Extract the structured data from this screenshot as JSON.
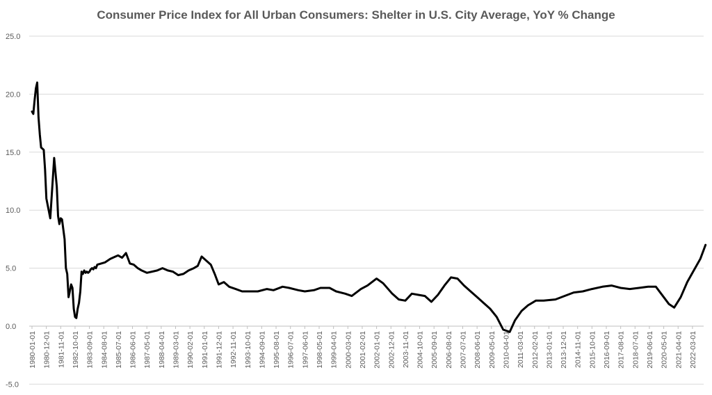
{
  "chart_data": {
    "type": "line",
    "title": "Consumer Price Index for All Urban Consumers: Shelter in U.S. City Average, YoY % Change",
    "xlabel": "",
    "ylabel": "",
    "ylim": [
      -5,
      25
    ],
    "yticks": [
      "25.0",
      "20.0",
      "15.0",
      "10.0",
      "5.0",
      "0.0",
      "-5.0"
    ],
    "ytick_values": [
      25,
      20,
      15,
      10,
      5,
      0,
      -5
    ],
    "xtick_labels": [
      "1980-01-01",
      "1980-12-01",
      "1981-11-01",
      "1982-10-01",
      "1983-09-01",
      "1984-08-01",
      "1985-07-01",
      "1986-06-01",
      "1987-05-01",
      "1988-04-01",
      "1989-03-01",
      "1990-02-01",
      "1991-01-01",
      "1991-12-01",
      "1992-11-01",
      "1993-10-01",
      "1994-09-01",
      "1995-08-01",
      "1996-07-01",
      "1997-06-01",
      "1998-05-01",
      "1999-04-01",
      "2000-03-01",
      "2001-02-01",
      "2002-01-01",
      "2002-12-01",
      "2003-11-01",
      "2004-10-01",
      "2005-09-01",
      "2006-08-01",
      "2007-07-01",
      "2008-06-01",
      "2009-05-01",
      "2010-04-01",
      "2011-03-01",
      "2012-02-01",
      "2013-01-01",
      "2013-12-01",
      "2014-11-01",
      "2015-10-01",
      "2016-09-01",
      "2017-08-01",
      "2018-07-01",
      "2019-06-01",
      "2020-05-01",
      "2021-04-01",
      "2022-03-01"
    ],
    "grid": true,
    "legend": "none",
    "line_color": "#000000",
    "grid_color": "#d9d9d9",
    "series": [
      {
        "x": [
          "1980-01-01",
          "1980-02-01",
          "1980-03-01",
          "1980-04-01",
          "1980-05-01",
          "1980-06-01",
          "1980-07-01",
          "1980-08-01",
          "1980-09-01",
          "1980-10-01",
          "1980-11-01",
          "1980-12-01",
          "1981-03-01",
          "1981-06-01",
          "1981-08-01",
          "1981-09-01",
          "1981-10-01",
          "1981-11-01",
          "1981-12-01",
          "1982-02-01",
          "1982-03-01",
          "1982-04-01",
          "1982-05-01",
          "1982-06-01",
          "1982-07-01",
          "1982-08-01",
          "1982-09-01",
          "1982-10-01",
          "1982-11-01",
          "1982-12-01",
          "1983-01-01",
          "1983-02-01",
          "1983-03-01",
          "1983-04-01",
          "1983-05-01",
          "1983-06-01",
          "1983-07-01",
          "1983-08-01",
          "1983-09-01",
          "1983-10-01",
          "1983-11-01",
          "1983-12-01",
          "1984-01-01",
          "1984-02-01",
          "1984-03-01",
          "1984-06-01",
          "1984-09-01",
          "1985-01-01",
          "1985-05-01",
          "1985-07-01",
          "1985-10-01",
          "1986-01-01",
          "1986-04-01",
          "1986-07-01",
          "1986-10-01",
          "1987-01-01",
          "1987-05-01",
          "1987-09-01",
          "1988-01-01",
          "1988-05-01",
          "1988-09-01",
          "1989-01-01",
          "1989-05-01",
          "1989-09-01",
          "1990-01-01",
          "1990-05-01",
          "1990-08-01",
          "1990-11-01",
          "1991-03-01",
          "1991-06-01",
          "1991-09-01",
          "1991-12-01",
          "1992-04-01",
          "1992-08-01",
          "1993-01-01",
          "1993-06-01",
          "1994-01-01",
          "1994-06-01",
          "1995-01-01",
          "1995-06-01",
          "1996-01-01",
          "1996-06-01",
          "1997-01-01",
          "1997-06-01",
          "1998-01-01",
          "1998-06-01",
          "1999-01-01",
          "1999-06-01",
          "2000-01-01",
          "2000-06-01",
          "2001-01-01",
          "2001-06-01",
          "2002-01-01",
          "2002-06-01",
          "2003-01-01",
          "2003-06-01",
          "2003-11-01",
          "2004-04-01",
          "2004-09-01",
          "2005-02-01",
          "2005-07-01",
          "2005-12-01",
          "2006-05-01",
          "2006-10-01",
          "2007-03-01",
          "2007-08-01",
          "2008-01-01",
          "2008-06-01",
          "2008-11-01",
          "2009-04-01",
          "2009-09-01",
          "2010-02-01",
          "2010-07-01",
          "2010-11-01",
          "2011-04-01",
          "2011-09-01",
          "2012-03-01",
          "2012-09-01",
          "2013-06-01",
          "2014-01-01",
          "2014-08-01",
          "2015-03-01",
          "2015-10-01",
          "2016-06-01",
          "2017-01-01",
          "2017-08-01",
          "2018-03-01",
          "2018-10-01",
          "2019-05-01",
          "2019-11-01",
          "2020-05-01",
          "2020-09-01",
          "2021-01-01",
          "2021-06-01",
          "2021-11-01",
          "2022-04-01",
          "2022-09-01",
          "2023-01-01"
        ],
        "values": [
          18.5,
          18.3,
          19.5,
          20.5,
          21.0,
          18.0,
          16.5,
          15.4,
          15.3,
          15.2,
          13.5,
          11.0,
          9.3,
          14.5,
          12.0,
          9.5,
          8.8,
          9.3,
          9.2,
          7.5,
          5.0,
          4.5,
          2.5,
          3.0,
          3.6,
          3.3,
          1.5,
          0.8,
          0.7,
          1.5,
          2.0,
          3.0,
          4.7,
          4.5,
          4.8,
          4.6,
          4.7,
          4.6,
          4.7,
          4.9,
          5.0,
          4.9,
          5.1,
          5.0,
          5.3,
          5.4,
          5.5,
          5.8,
          6.0,
          6.1,
          5.9,
          6.3,
          5.4,
          5.3,
          5.0,
          4.8,
          4.6,
          4.7,
          4.8,
          5.0,
          4.8,
          4.7,
          4.4,
          4.5,
          4.8,
          5.0,
          5.2,
          6.0,
          5.6,
          5.3,
          4.5,
          3.6,
          3.8,
          3.4,
          3.2,
          3.0,
          3.0,
          3.0,
          3.2,
          3.1,
          3.4,
          3.3,
          3.1,
          3.0,
          3.1,
          3.3,
          3.3,
          3.0,
          2.8,
          2.6,
          3.2,
          3.5,
          4.1,
          3.7,
          2.8,
          2.3,
          2.2,
          2.8,
          2.7,
          2.6,
          2.1,
          2.7,
          3.5,
          4.2,
          4.1,
          3.5,
          3.0,
          2.5,
          2.0,
          1.5,
          0.8,
          -0.3,
          -0.5,
          0.5,
          1.3,
          1.8,
          2.2,
          2.2,
          2.3,
          2.6,
          2.9,
          3.0,
          3.2,
          3.4,
          3.5,
          3.3,
          3.2,
          3.3,
          3.4,
          3.4,
          2.5,
          1.9,
          1.6,
          2.5,
          3.8,
          4.8,
          5.8,
          7.0
        ]
      }
    ]
  }
}
